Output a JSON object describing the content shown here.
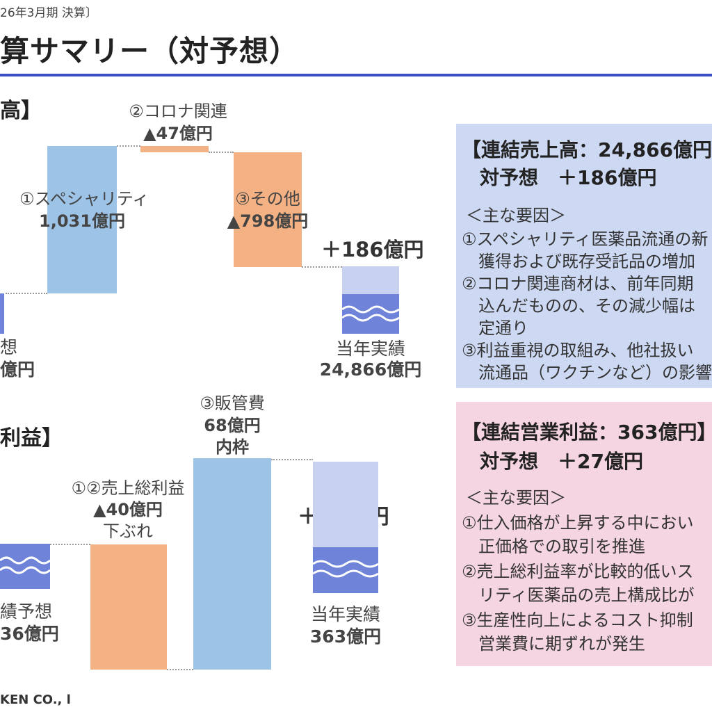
{
  "header": {
    "period": "26年3月期 決算〕",
    "title": "算サマリー（対予想）",
    "footer": "KEN CO., l"
  },
  "colors": {
    "rule": "#3a4fc6",
    "bar_blue": "#9dc3e6",
    "bar_orange": "#f4b183",
    "result_light": "#c8d2f0",
    "result_dark": "#6f84d8",
    "box_blue": "#cdd9f3",
    "box_pink": "#f6d5e2"
  },
  "chart_data": [
    {
      "type": "waterfall",
      "title": "高】",
      "unit": "億円",
      "start": {
        "label_line1": "想",
        "label_line2": "億円"
      },
      "steps": [
        {
          "name": "①スペシャリティ",
          "value_label": "1,031億円",
          "value": 1031
        },
        {
          "name": "②コロナ関連",
          "value_label": "▲47億円",
          "value": -47
        },
        {
          "name": "③その他",
          "value_label": "▲798億円",
          "value": -798
        }
      ],
      "diff_label": "＋186億円",
      "diff_value": 186,
      "end": {
        "label_line1": "当年実績",
        "label_line2": "24,866億円",
        "value": 24866
      }
    },
    {
      "type": "waterfall",
      "title": "利益】",
      "unit": "億円",
      "start": {
        "label_line1": "績予想",
        "label_line2": "36億円"
      },
      "steps": [
        {
          "name": "①②売上総利益",
          "value_label": "▲40億円",
          "note": "下ぶれ",
          "value": -40
        },
        {
          "name": "③販管費",
          "value_label": "68億円",
          "note": "内枠",
          "value": 68
        }
      ],
      "diff_label": "＋27億円",
      "diff_value": 27,
      "end": {
        "label_line1": "当年実績",
        "label_line2": "363億円",
        "value": 363
      }
    }
  ],
  "box_sales": {
    "heading": "【連結売上高：24,866億円",
    "vs": "対予想　＋186億円",
    "factors_title": "＜主な要因＞",
    "lines": [
      "①スペシャリティ医薬品流通の新",
      "　獲得および既存受託品の増加",
      "②コロナ関連商材は、前年同期",
      "　込んだものの、その減少幅は",
      "　定通り",
      "③利益重視の取組み、他社扱い",
      "　流通品（ワクチンなど）の影響"
    ]
  },
  "box_profit": {
    "heading": "【連結営業利益：363億円】",
    "vs": "対予想　＋27億円",
    "factors_title": "＜主な要因＞",
    "lines": [
      "①仕入価格が上昇する中におい",
      "　正価格での取引を推進",
      "②売上総利益率が比較的低いス",
      "　リティ医薬品の売上構成比が",
      "③生産性向上によるコスト抑制",
      "　営業費に期ずれが発生"
    ]
  }
}
